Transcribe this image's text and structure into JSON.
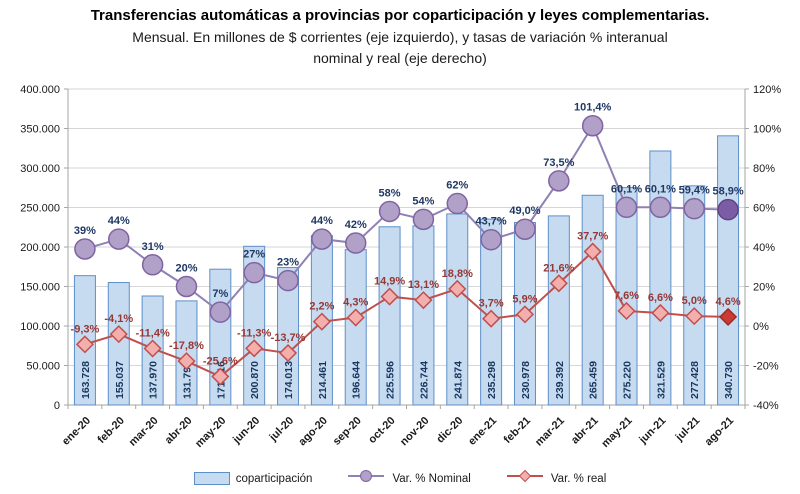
{
  "header": {
    "title": "Transferencias automáticas a provincias por coparticipación y leyes complementarias.",
    "subtitle_line1": "Mensual. En millones de $ corrientes (eje izquierdo), y tasas de variación % interanual",
    "subtitle_line2": "nominal y real (eje derecho)"
  },
  "legend": {
    "items": [
      {
        "label": "coparticipación",
        "marker": "bar-swatch"
      },
      {
        "label": "Var. % Nominal",
        "marker": "circle-line-swatch"
      },
      {
        "label": "Var. % real",
        "marker": "diamond-line-swatch"
      }
    ]
  },
  "colors": {
    "bar_fill": "#C6DAF0",
    "bar_stroke": "#5E8FC9",
    "bar_label": "#17365D",
    "nominal_line": "#8F81B5",
    "nominal_marker_fill": "#B1A0C7",
    "nominal_marker_stroke": "#8064A2",
    "nominal_last_fill": "#7D5CA6",
    "nominal_last_stroke": "#5E4580",
    "nominal_label": "#1F3864",
    "real_line": "#C0504D",
    "real_marker_fill": "#F2AFAD",
    "real_marker_stroke": "#C0504D",
    "real_last_fill": "#CC3B33",
    "real_last_stroke": "#9E2B25",
    "real_label": "#953735",
    "grid": "#D6D6D6",
    "axis": "#A6A6A6",
    "tick_text": "#1A1A1A"
  },
  "chart_data": {
    "type": "bar",
    "subtype": "bar+line combo, dual axis",
    "categories": [
      "ene-20",
      "feb-20",
      "mar-20",
      "abr-20",
      "may-20",
      "jun-20",
      "jul-20",
      "ago-20",
      "sep-20",
      "oct-20",
      "nov-20",
      "dic-20",
      "ene-21",
      "feb-21",
      "mar-21",
      "abr-21",
      "may-21",
      "jun-21",
      "jul-21",
      "ago-21"
    ],
    "series": [
      {
        "name": "coparticipación",
        "type": "bar",
        "axis": "left",
        "values": [
          163728,
          155037,
          137970,
          131791,
          171916,
          200870,
          174013,
          214461,
          196644,
          225596,
          226744,
          241874,
          235298,
          230978,
          239392,
          265459,
          275220,
          321529,
          277428,
          340730
        ],
        "labels": [
          "163.728",
          "155.037",
          "137.970",
          "131.791",
          "171.916",
          "200.870",
          "174.013",
          "214.461",
          "196.644",
          "225.596",
          "226.744",
          "241.874",
          "235.298",
          "230.978",
          "239.392",
          "265.459",
          "275.220",
          "321.529",
          "277.428",
          "340.730"
        ]
      },
      {
        "name": "Var. % Nominal",
        "type": "line",
        "marker": "circle",
        "axis": "right",
        "values": [
          39,
          44,
          31,
          20,
          7,
          27,
          23,
          44,
          42,
          58,
          54,
          62,
          43.7,
          49.0,
          73.5,
          101.4,
          60.1,
          60.1,
          59.4,
          58.9
        ],
        "labels": [
          "39%",
          "44%",
          "31%",
          "20%",
          "7%",
          "27%",
          "23%",
          "44%",
          "42%",
          "58%",
          "54%",
          "62%",
          "43,7%",
          "49,0%",
          "73,5%",
          "101,4%",
          "60,1%",
          "60,1%",
          "59,4%",
          "58,9%"
        ]
      },
      {
        "name": "Var. % real",
        "type": "line",
        "marker": "diamond",
        "axis": "right",
        "values": [
          -9.3,
          -4.1,
          -11.4,
          -17.8,
          -25.6,
          -11.3,
          -13.7,
          2.2,
          4.3,
          14.9,
          13.1,
          18.8,
          3.7,
          5.9,
          21.6,
          37.7,
          7.6,
          6.6,
          5.0,
          4.6
        ],
        "labels": [
          "-9,3%",
          "-4,1%",
          "-11,4%",
          "-17,8%",
          "-25,6%",
          "-11,3%",
          "-13,7%",
          "2,2%",
          "4,3%",
          "14,9%",
          "13,1%",
          "18,8%",
          "3,7%",
          "5,9%",
          "21,6%",
          "37,7%",
          "7,6%",
          "6,6%",
          "5,0%",
          "4,6%"
        ]
      }
    ],
    "left_axis": {
      "min": 0,
      "max": 400000,
      "step": 50000,
      "tick_labels": [
        "400.000",
        "350.000",
        "300.000",
        "250.000",
        "200.000",
        "150.000",
        "100.000",
        "50.000",
        "0"
      ]
    },
    "right_axis": {
      "min": -40,
      "max": 120,
      "step": 20,
      "tick_labels": [
        "120%",
        "100%",
        "80%",
        "60%",
        "40%",
        "20%",
        "0%",
        "-20%",
        "-40%"
      ]
    },
    "grid": true,
    "legend_position": "bottom",
    "highlight_last_point": true
  }
}
